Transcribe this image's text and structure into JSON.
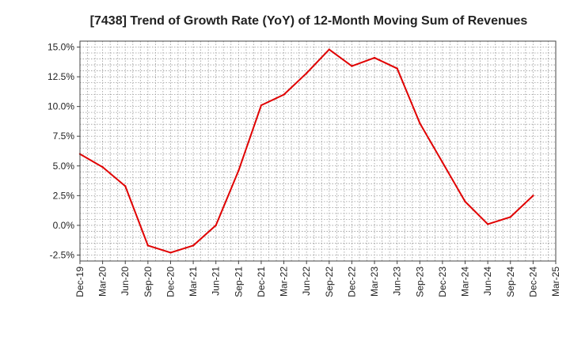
{
  "chart_data": {
    "type": "line",
    "title": "[7438]  Trend of Growth Rate (YoY) of 12-Month Moving Sum of Revenues",
    "xlabel": "",
    "ylabel": "",
    "categories": [
      "Dec-19",
      "Mar-20",
      "Jun-20",
      "Sep-20",
      "Dec-20",
      "Mar-21",
      "Jun-21",
      "Sep-21",
      "Dec-21",
      "Mar-22",
      "Jun-22",
      "Sep-22",
      "Dec-22",
      "Mar-23",
      "Jun-23",
      "Sep-23",
      "Dec-23",
      "Mar-24",
      "Jun-24",
      "Sep-24",
      "Dec-24",
      "Mar-25"
    ],
    "series": [
      {
        "color": "#e00000",
        "values": [
          6.0,
          4.9,
          3.3,
          -1.7,
          -2.3,
          -1.7,
          0.0,
          4.6,
          10.1,
          11.0,
          12.8,
          14.8,
          13.4,
          14.1,
          13.2,
          8.6,
          5.3,
          2.0,
          0.1,
          0.7,
          2.5,
          null
        ]
      }
    ],
    "ylim": [
      -3.0,
      15.5
    ],
    "yticks": [
      -2.5,
      0.0,
      2.5,
      5.0,
      7.5,
      10.0,
      12.5,
      15.0
    ],
    "ytick_labels": [
      "-2.5%",
      "0.0%",
      "2.5%",
      "5.0%",
      "7.5%",
      "10.0%",
      "12.5%",
      "15.0%"
    ],
    "grid": true,
    "legend": "none"
  }
}
